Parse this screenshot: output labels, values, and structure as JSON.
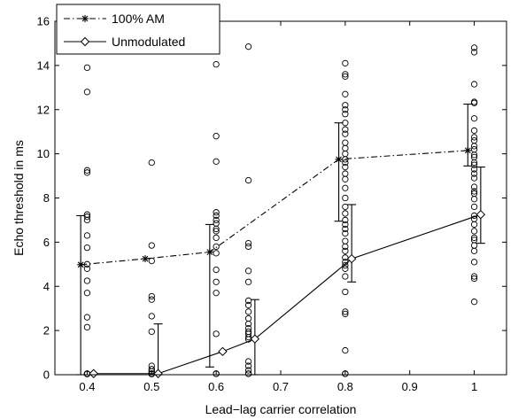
{
  "chart_data": {
    "type": "line",
    "title": "",
    "xlabel": "Lead−lag carrier correlation",
    "ylabel": "Echo threshold in ms",
    "xlim": [
      0.35,
      1.05
    ],
    "ylim": [
      0,
      16
    ],
    "xticks": [
      0.4,
      0.5,
      0.6,
      0.7,
      0.8,
      0.9,
      1
    ],
    "xtick_labels": [
      "0.4",
      "0.5",
      "0.6",
      "0.7",
      "0.8",
      "0.9",
      "1"
    ],
    "yticks": [
      0,
      2,
      4,
      6,
      8,
      10,
      12,
      14,
      16
    ],
    "ytick_labels": [
      "0",
      "2",
      "4",
      "6",
      "8",
      "10",
      "12",
      "14",
      "16"
    ],
    "grid": false,
    "legend_position": "top-left",
    "series": [
      {
        "name": "100% AM",
        "line_style": "dash-dot",
        "marker": "asterisk",
        "x": [
          0.39,
          0.49,
          0.59,
          0.79,
          0.99
        ],
        "y": [
          4.98,
          5.25,
          5.55,
          9.75,
          10.15
        ],
        "err_low": [
          0,
          null,
          0.35,
          6.95,
          9.45
        ],
        "err_high": [
          7.2,
          null,
          6.8,
          11.4,
          12.25
        ]
      },
      {
        "name": "Unmodulated",
        "line_style": "solid",
        "marker": "diamond",
        "x": [
          0.41,
          0.51,
          0.61,
          0.66,
          0.81,
          1.01
        ],
        "y": [
          0.05,
          0.05,
          1.05,
          1.62,
          5.25,
          7.25
        ],
        "err_low": [
          null,
          0,
          null,
          0,
          4.2,
          5.95
        ],
        "err_high": [
          null,
          2.3,
          null,
          3.4,
          7.7,
          9.4
        ]
      }
    ],
    "scatter_points": [
      {
        "x": 0.4,
        "y": [
          13.9,
          12.8,
          9.25,
          9.15,
          7.25,
          7.15,
          7.0,
          6.3,
          5.75,
          5.0,
          4.8,
          4.25,
          3.7,
          2.6,
          2.15,
          0.05,
          0.04,
          0.03
        ]
      },
      {
        "x": 0.5,
        "y": [
          9.6,
          5.85,
          5.15,
          3.55,
          3.4,
          2.65,
          1.95,
          0.4,
          0.25,
          0.15,
          0.05,
          0.04,
          0.03
        ]
      },
      {
        "x": 0.6,
        "y": [
          14.05,
          10.8,
          9.65,
          7.35,
          7.2,
          7.0,
          6.85,
          6.6,
          6.5,
          6.2,
          5.8,
          5.5,
          4.75,
          4.2,
          3.7,
          1.85,
          0.05,
          0.04
        ]
      },
      {
        "x": 0.65,
        "y": [
          14.85,
          8.8,
          5.95,
          5.8,
          4.7,
          4.2,
          3.35,
          3.15,
          2.85,
          2.55,
          2.3,
          2.1,
          1.95,
          1.85,
          1.7,
          1.6,
          0.6,
          0.4,
          0.2,
          0.05,
          0.04
        ]
      },
      {
        "x": 0.8,
        "y": [
          14.1,
          13.6,
          13.5,
          12.7,
          12.2,
          12.0,
          11.8,
          11.4,
          11.1,
          10.9,
          10.5,
          10.25,
          10.0,
          9.75,
          9.6,
          9.4,
          9.1,
          8.85,
          8.45,
          8.0,
          7.6,
          7.3,
          7.0,
          6.8,
          6.6,
          6.4,
          6.05,
          5.8,
          5.6,
          5.3,
          5.1,
          4.95,
          4.8,
          4.45,
          3.75,
          2.85,
          2.75,
          1.1,
          0.05,
          0.04
        ]
      },
      {
        "x": 1,
        "y": [
          14.8,
          14.6,
          13.15,
          12.35,
          12.3,
          11.6,
          11.05,
          10.75,
          10.6,
          10.35,
          10.2,
          9.95,
          9.85,
          9.6,
          9.5,
          9.3,
          9.1,
          8.9,
          8.5,
          8.3,
          8.2,
          7.95,
          7.6,
          7.2,
          7.05,
          6.8,
          6.5,
          6.2,
          6.1,
          5.85,
          5.6,
          5.1,
          4.45,
          4.35,
          3.3
        ]
      }
    ]
  }
}
